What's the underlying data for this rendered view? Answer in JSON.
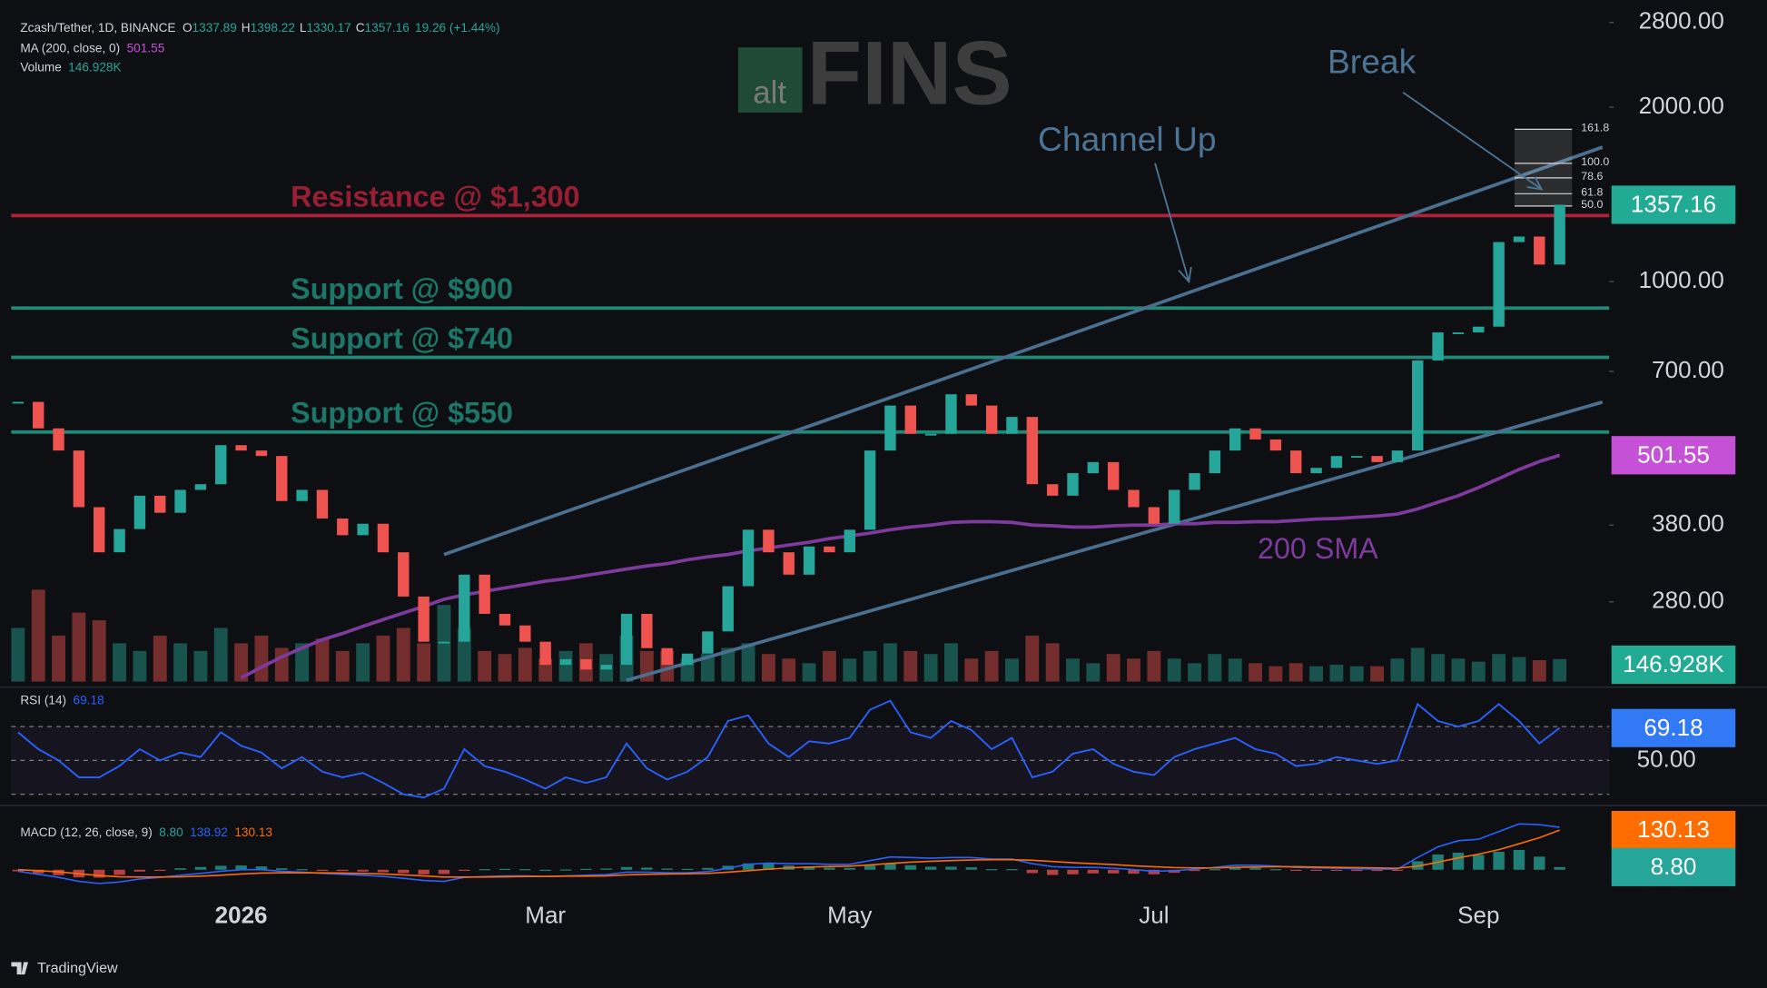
{
  "header": {
    "symbol": "Zcash/Tether, 1D, BINANCE",
    "ohlc": [
      [
        "O",
        "1337.89"
      ],
      [
        "H",
        "1398.22"
      ],
      [
        "L",
        "1330.17"
      ],
      [
        "C",
        "1357.16"
      ]
    ],
    "change": "19.26 (+1.44%)",
    "ma_title": "MA (200, close, 0)",
    "volume_title": "Volume"
  },
  "logo": {
    "prefix": "alt",
    "name": "FINS"
  },
  "footer": "TradingView",
  "chart_data": {
    "type": "candlestick",
    "log_scale": true,
    "categories": [
      null,
      null,
      null,
      null,
      null,
      null,
      null,
      null,
      null,
      null,
      null,
      "2026",
      null,
      null,
      null,
      null,
      null,
      null,
      null,
      null,
      null,
      null,
      null,
      null,
      null,
      null,
      "Mar",
      null,
      null,
      null,
      null,
      null,
      null,
      null,
      null,
      null,
      null,
      null,
      null,
      null,
      null,
      "May",
      null,
      null,
      null,
      null,
      null,
      null,
      null,
      null,
      null,
      null,
      null,
      null,
      null,
      null,
      "Jul",
      null,
      null,
      null,
      null,
      null,
      null,
      null,
      null,
      null,
      null,
      null,
      null,
      null,
      null,
      null,
      "Sep",
      null,
      null,
      null,
      null
    ],
    "close": [
      620,
      558,
      511,
      408,
      341,
      374,
      427,
      399,
      437,
      447,
      522,
      511,
      500,
      418,
      437,
      390,
      365,
      382,
      341,
      286,
      239,
      239,
      312,
      267,
      255,
      239,
      218,
      223,
      214,
      218,
      267,
      233,
      218,
      228,
      249,
      298,
      373,
      341,
      312,
      349,
      341,
      373,
      511,
      611,
      546,
      546,
      639,
      611,
      546,
      584,
      447,
      427,
      467,
      488,
      437,
      408,
      382,
      437,
      467,
      511,
      558,
      534,
      511,
      467,
      477,
      500,
      500,
      488,
      511,
      731,
      817,
      817,
      836,
      1170,
      1196,
      1070,
      1357.16
    ],
    "up_color": "#26a69a",
    "down_color": "#ef5350",
    "ylim": [
      204,
      3062
    ],
    "yticks": [
      {
        "value": 2800,
        "label": "2800.00"
      },
      {
        "value": 2000,
        "label": "2000.00"
      },
      {
        "value": 1000,
        "label": "1000.00"
      },
      {
        "value": 700,
        "label": "700.00"
      },
      {
        "value": 380,
        "label": "380.00"
      },
      {
        "value": 280,
        "label": "280.00"
      }
    ],
    "price_badge_color": "#22ab94",
    "sma": {
      "name": "200 SMA",
      "color": "#7e3a9c",
      "badge_color": "#c552d6",
      "values": [
        null,
        null,
        null,
        null,
        null,
        null,
        null,
        null,
        null,
        null,
        null,
        207,
        216,
        225,
        233,
        241,
        247,
        254,
        261,
        268,
        275,
        283,
        288,
        292,
        296,
        300,
        304,
        307,
        311,
        315,
        319,
        323,
        326,
        331,
        335,
        338,
        343,
        347,
        351,
        355,
        360,
        364,
        368,
        373,
        377,
        380,
        384,
        385,
        385,
        384,
        380,
        379,
        377,
        377,
        379,
        380,
        380,
        382,
        382,
        384,
        384,
        385,
        385,
        387,
        389,
        390,
        392,
        394,
        397,
        405,
        416,
        427,
        441,
        457,
        474,
        489,
        501.55
      ]
    },
    "volume": {
      "ylim": [
        0,
        1000
      ],
      "badge_color": "#22ab94",
      "last_label": "146.928K",
      "values": [
        350,
        600,
        300,
        450,
        400,
        250,
        200,
        300,
        250,
        200,
        350,
        250,
        300,
        220,
        250,
        280,
        200,
        250,
        300,
        350,
        250,
        500,
        350,
        200,
        180,
        220,
        150,
        200,
        250,
        180,
        300,
        200,
        200,
        150,
        180,
        220,
        250,
        180,
        150,
        120,
        200,
        150,
        200,
        250,
        200,
        180,
        250,
        150,
        200,
        150,
        300,
        250,
        150,
        120,
        180,
        150,
        200,
        150,
        120,
        180,
        150,
        120,
        100,
        120,
        100,
        110,
        100,
        100,
        150,
        220,
        180,
        150,
        130,
        180,
        160,
        140,
        146.928
      ]
    },
    "rsi": {
      "title": "RSI (14)",
      "color": "#2962ff",
      "badge_color": "#3179f5",
      "ylim": [
        25,
        90
      ],
      "band": [
        30,
        70
      ],
      "yticks": [
        {
          "value": 50,
          "label": "50.00"
        }
      ],
      "values": [
        66.7,
        56.7,
        50,
        40,
        40,
        46.7,
        56.7,
        50,
        54.7,
        52,
        66.7,
        58.7,
        54.7,
        45.3,
        52,
        43.3,
        40,
        42.7,
        36.7,
        30,
        28,
        33.3,
        56.7,
        46.7,
        43.3,
        38.7,
        33.3,
        40,
        36.7,
        40,
        60,
        45.3,
        38.7,
        43.3,
        52,
        73.3,
        76.7,
        60,
        52,
        61.3,
        60,
        63.3,
        80,
        85.3,
        66.7,
        63.3,
        73.3,
        68,
        56.7,
        63.3,
        40,
        43.3,
        54,
        56.7,
        48,
        43.3,
        41.3,
        52,
        56.7,
        60,
        63.3,
        56.7,
        54,
        46.7,
        48,
        52,
        50,
        48,
        50,
        83.3,
        73.3,
        70,
        73.3,
        83.3,
        73.3,
        60,
        69.18
      ]
    },
    "macd": {
      "title": "MACD (12, 26, close, 9)",
      "ylim": [
        -70,
        170
      ],
      "macd": {
        "color": "#2962ff",
        "values": [
          -5,
          -15,
          -25,
          -38,
          -45,
          -40,
          -30,
          -25,
          -18,
          -12,
          -5,
          0,
          0,
          -5,
          -8,
          -12,
          -15,
          -18,
          -22,
          -28,
          -35,
          -38,
          -25,
          -22,
          -20,
          -20,
          -22,
          -20,
          -18,
          -16,
          -8,
          -8,
          -10,
          -10,
          -6,
          5,
          18,
          22,
          20,
          20,
          18,
          18,
          30,
          42,
          40,
          38,
          40,
          40,
          35,
          35,
          20,
          10,
          8,
          8,
          5,
          0,
          -5,
          -3,
          2,
          8,
          15,
          15,
          12,
          8,
          6,
          5,
          3,
          2,
          2,
          40,
          75,
          95,
          100,
          125,
          150,
          148,
          138.92
        ]
      },
      "signal": {
        "color": "#ff6d00",
        "values": [
          0,
          -3,
          -7,
          -13,
          -19,
          -23,
          -24,
          -24,
          -23,
          -21,
          -18,
          -14,
          -11,
          -10,
          -10,
          -10,
          -11,
          -12,
          -14,
          -17,
          -20,
          -24,
          -24,
          -24,
          -23,
          -22,
          -22,
          -21,
          -21,
          -20,
          -17,
          -15,
          -14,
          -13,
          -12,
          -8,
          -3,
          2,
          6,
          9,
          11,
          12,
          16,
          21,
          25,
          28,
          30,
          32,
          33,
          33,
          31,
          27,
          23,
          20,
          17,
          13,
          10,
          7,
          6,
          6,
          8,
          9,
          10,
          10,
          9,
          8,
          7,
          6,
          5,
          12,
          25,
          39,
          51,
          66,
          85,
          105,
          130.13
        ]
      },
      "hist": {
        "up_color": "#26a69a",
        "down_color": "#ef5350",
        "last_label": "8.80",
        "values": [
          -5,
          -12,
          -18,
          -25,
          -26,
          -17,
          -6,
          -1,
          5,
          9,
          13,
          14,
          11,
          5,
          2,
          -2,
          -4,
          -6,
          -8,
          -11,
          -15,
          -14,
          -1,
          2,
          3,
          2,
          0,
          1,
          3,
          4,
          9,
          7,
          4,
          3,
          6,
          13,
          21,
          20,
          14,
          11,
          7,
          6,
          14,
          21,
          15,
          10,
          10,
          8,
          2,
          2,
          -11,
          -17,
          -15,
          -12,
          -12,
          -13,
          -15,
          -10,
          -4,
          2,
          7,
          6,
          2,
          -2,
          -3,
          -3,
          -4,
          -4,
          -3,
          28,
          50,
          56,
          49,
          59,
          65,
          43,
          8.8
        ]
      }
    },
    "levels": [
      {
        "label": "Resistance @ $1,300",
        "value": 1300,
        "color": "#b0223a"
      },
      {
        "label": "Support @ $900",
        "value": 900,
        "color": "#1f8a78"
      },
      {
        "label": "Support @ $740",
        "value": 740,
        "color": "#1f8a78"
      },
      {
        "label": "Support @ $550",
        "value": 550,
        "color": "#1f8a78"
      }
    ],
    "channel": {
      "color": "#4a6f8f",
      "lines": [
        {
          "from": [
            21,
            338
          ],
          "to": [
            76,
            1607
          ]
        },
        {
          "from": [
            30,
            205
          ],
          "to": [
            76,
            590
          ]
        }
      ]
    },
    "fib": {
      "levels": [
        {
          "value": 1832,
          "label": "161.8"
        },
        {
          "value": 1600,
          "label": "100.0"
        },
        {
          "value": 1510,
          "label": "78.6"
        },
        {
          "value": 1418,
          "label": "61.8"
        },
        {
          "value": 1350,
          "label": "50.0"
        }
      ]
    },
    "annotations": {
      "channel": "Channel Up",
      "break": "Break",
      "sma": "200 SMA"
    }
  }
}
